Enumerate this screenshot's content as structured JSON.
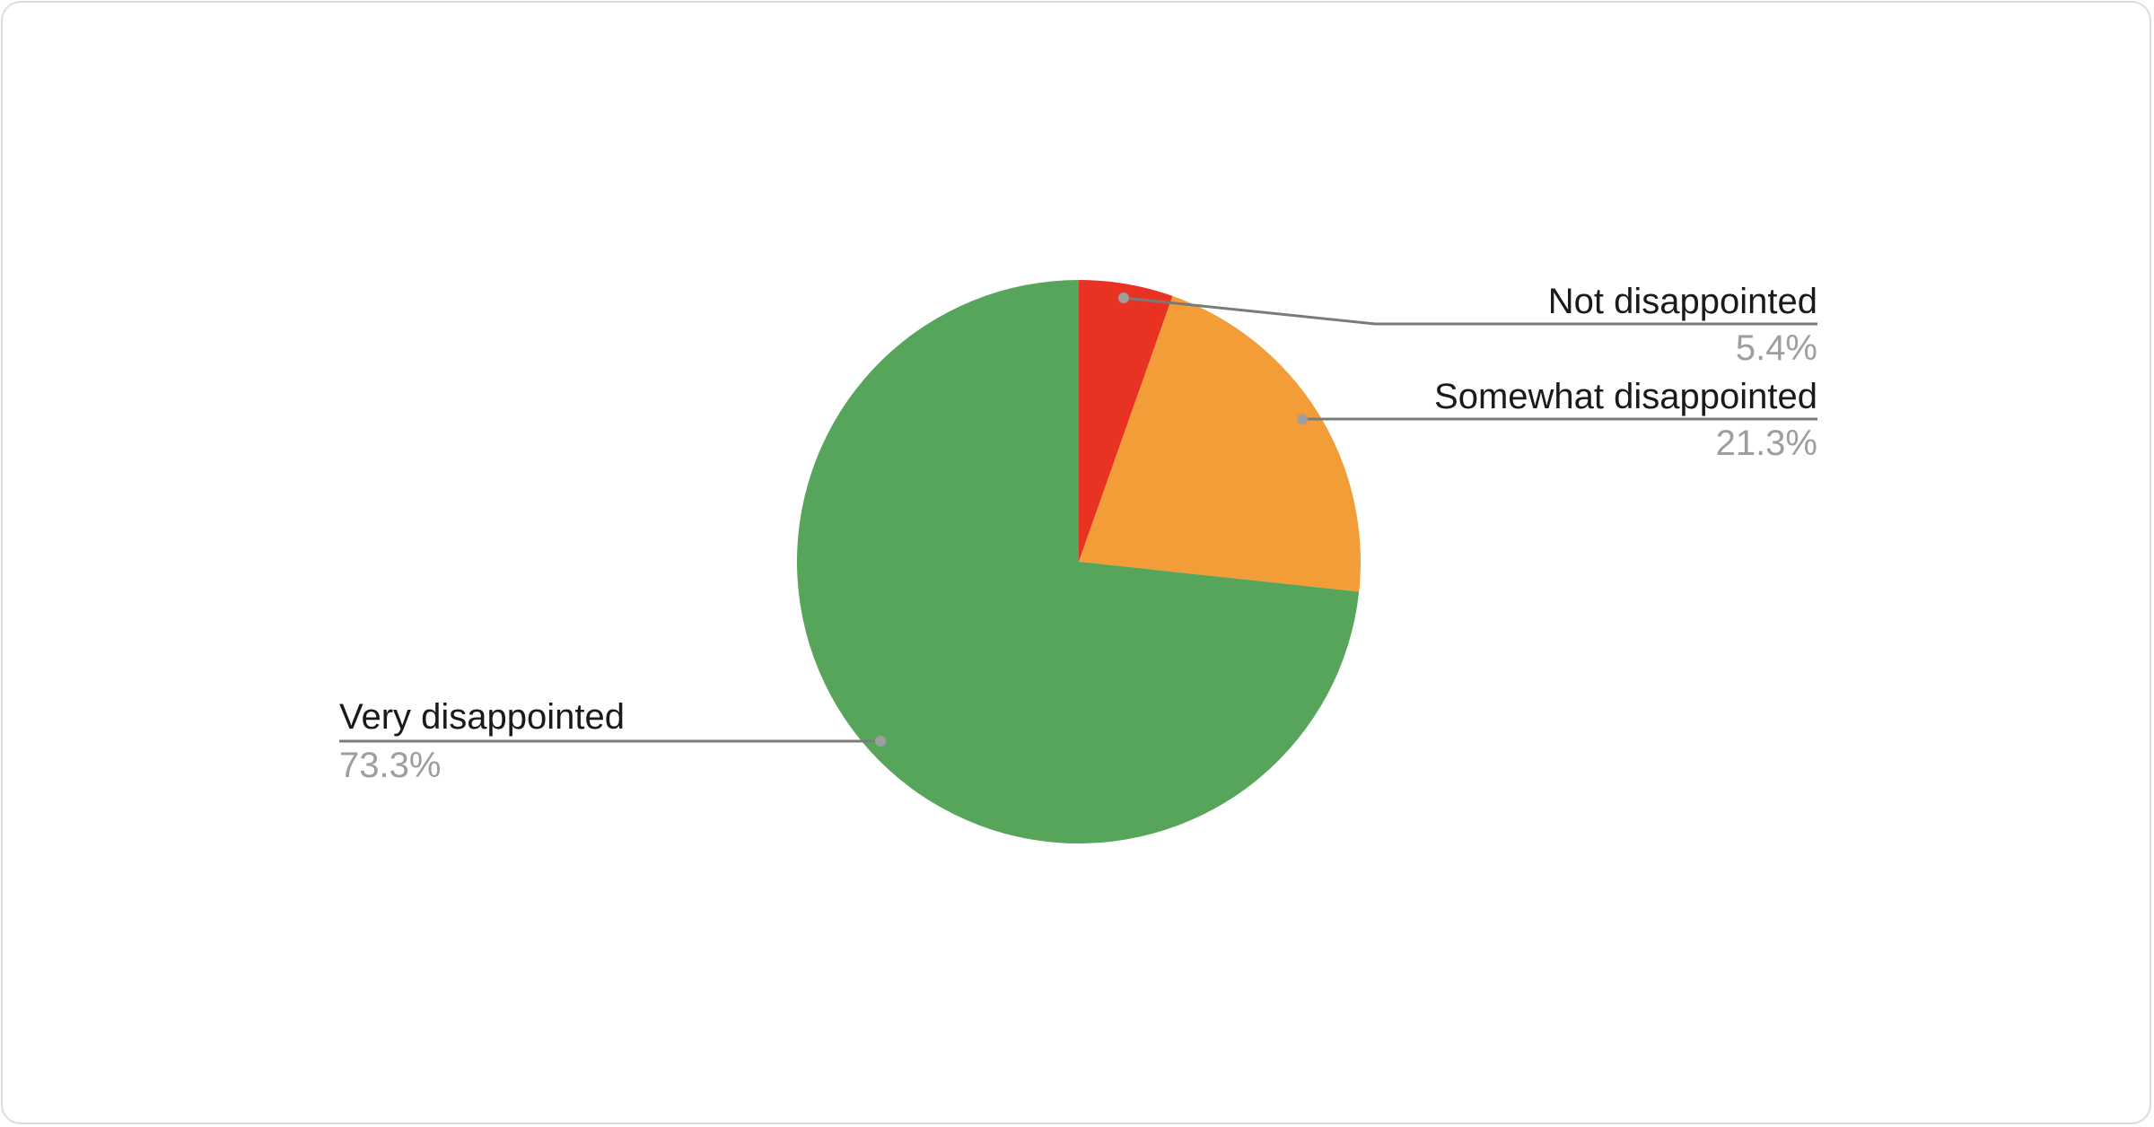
{
  "chart_data": {
    "type": "pie",
    "start_angle": "top, clockwise",
    "slices": [
      {
        "label": "Not disappointed",
        "value": 5.4,
        "display": "5.4%",
        "color": "#e83323"
      },
      {
        "label": "Somewhat disappointed",
        "value": 21.3,
        "display": "21.3%",
        "color": "#f29d38"
      },
      {
        "label": "Very disappointed",
        "value": 73.3,
        "display": "73.3%",
        "color": "#57a55a"
      }
    ],
    "legend": "none (leader-line labels)"
  }
}
